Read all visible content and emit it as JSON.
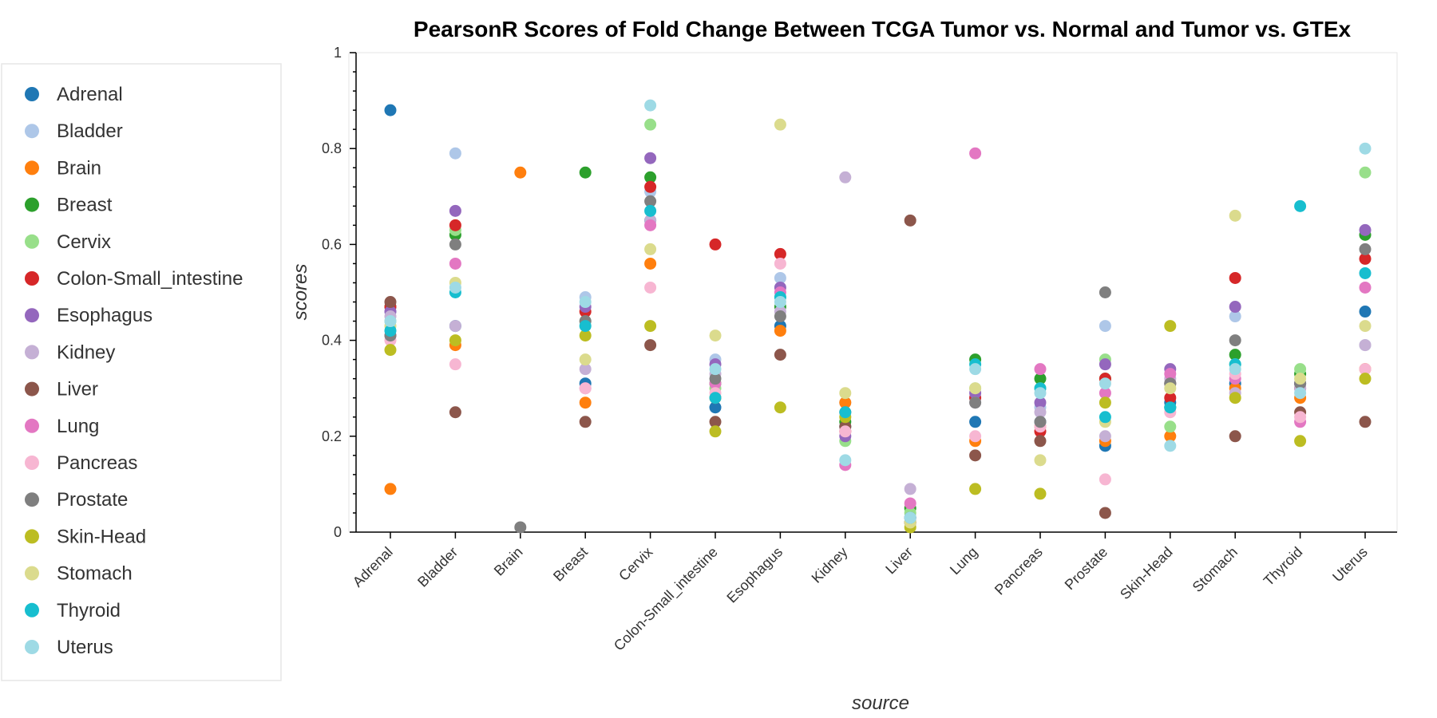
{
  "chart_data": {
    "type": "scatter",
    "title": "PearsonR Scores of Fold Change Between TCGA Tumor vs. Normal and Tumor vs. GTEx",
    "xlabel": "source",
    "ylabel": "scores",
    "ylim": [
      0,
      1
    ],
    "yticks": [
      "0",
      "0.2",
      "0.4",
      "0.6",
      "0.8",
      "1"
    ],
    "ytick_values": [
      0,
      0.2,
      0.4,
      0.6,
      0.8,
      1
    ],
    "grid": false,
    "legend_position": "left",
    "categories": [
      "Adrenal",
      "Bladder",
      "Brain",
      "Breast",
      "Cervix",
      "Colon-Small_intestine",
      "Esophagus",
      "Kidney",
      "Liver",
      "Lung",
      "Pancreas",
      "Prostate",
      "Skin-Head",
      "Stomach",
      "Thyroid",
      "Uterus"
    ],
    "series": [
      {
        "name": "Adrenal",
        "color": "#1f77b4",
        "values": [
          0.88,
          0.43,
          null,
          0.31,
          0.65,
          0.26,
          0.43,
          0.22,
          0.02,
          0.23,
          0.23,
          0.18,
          0.27,
          0.31,
          0.31,
          0.46
        ]
      },
      {
        "name": "Bladder",
        "color": "#aec7e8",
        "values": [
          0.46,
          0.79,
          null,
          0.49,
          0.71,
          0.36,
          0.53,
          0.27,
          0.02,
          0.28,
          0.26,
          0.43,
          0.31,
          0.45,
          0.3,
          0.39
        ]
      },
      {
        "name": "Brain",
        "color": "#ff7f0e",
        "values": [
          0.09,
          0.39,
          0.75,
          0.27,
          0.56,
          0.28,
          0.42,
          0.27,
          0.02,
          0.19,
          0.22,
          0.19,
          0.2,
          0.3,
          0.28,
          0.34
        ]
      },
      {
        "name": "Breast",
        "color": "#2ca02c",
        "values": [
          0.47,
          0.62,
          null,
          0.75,
          0.74,
          0.31,
          0.47,
          0.23,
          0.05,
          0.36,
          0.32,
          0.32,
          0.26,
          0.37,
          0.33,
          0.62
        ]
      },
      {
        "name": "Cervix",
        "color": "#98df8a",
        "values": [
          0.44,
          0.63,
          null,
          0.44,
          0.85,
          0.3,
          0.49,
          0.19,
          0.04,
          0.3,
          0.3,
          0.36,
          0.22,
          0.35,
          0.34,
          0.75
        ]
      },
      {
        "name": "Colon-Small_intestine",
        "color": "#d62728",
        "values": [
          0.47,
          0.64,
          null,
          0.46,
          0.72,
          0.6,
          0.58,
          0.21,
          0.03,
          0.28,
          0.21,
          0.32,
          0.28,
          0.53,
          0.3,
          0.57
        ]
      },
      {
        "name": "Esophagus",
        "color": "#9467bd",
        "values": [
          0.46,
          0.67,
          null,
          0.47,
          0.78,
          0.35,
          0.51,
          0.2,
          0.03,
          0.29,
          0.27,
          0.35,
          0.34,
          0.47,
          0.31,
          0.63
        ]
      },
      {
        "name": "Kidney",
        "color": "#c5b0d5",
        "values": [
          0.45,
          0.43,
          null,
          0.34,
          0.65,
          0.33,
          0.46,
          0.74,
          0.09,
          0.27,
          0.25,
          0.2,
          0.32,
          0.29,
          0.3,
          0.39
        ]
      },
      {
        "name": "Liver",
        "color": "#8c564b",
        "values": [
          0.48,
          0.25,
          null,
          0.23,
          0.39,
          0.23,
          0.37,
          0.22,
          0.65,
          0.16,
          0.19,
          0.04,
          0.31,
          0.2,
          0.25,
          0.23
        ]
      },
      {
        "name": "Lung",
        "color": "#e377c2",
        "values": [
          0.41,
          0.56,
          null,
          0.3,
          0.64,
          0.31,
          0.5,
          0.14,
          0.06,
          0.79,
          0.34,
          0.29,
          0.33,
          0.32,
          0.23,
          0.51
        ]
      },
      {
        "name": "Pancreas",
        "color": "#f7b6d2",
        "values": [
          0.4,
          0.35,
          null,
          0.3,
          0.51,
          0.29,
          0.56,
          0.21,
          0.03,
          0.2,
          0.22,
          0.11,
          0.25,
          0.33,
          0.24,
          0.34
        ]
      },
      {
        "name": "Prostate",
        "color": "#7f7f7f",
        "values": [
          0.41,
          0.6,
          0.01,
          0.44,
          0.69,
          0.32,
          0.45,
          0.25,
          0.02,
          0.27,
          0.23,
          0.5,
          0.31,
          0.4,
          0.31,
          0.59
        ]
      },
      {
        "name": "Skin-Head",
        "color": "#bcbd22",
        "values": [
          0.38,
          0.4,
          null,
          0.41,
          0.43,
          0.21,
          0.26,
          0.24,
          0.01,
          0.09,
          0.08,
          0.27,
          0.43,
          0.28,
          0.19,
          0.32
        ]
      },
      {
        "name": "Stomach",
        "color": "#dbdb8d",
        "values": [
          0.43,
          0.52,
          null,
          0.36,
          0.59,
          0.41,
          0.85,
          0.29,
          0.02,
          0.3,
          0.15,
          0.23,
          0.3,
          0.66,
          0.32,
          0.43
        ]
      },
      {
        "name": "Thyroid",
        "color": "#17becf",
        "values": [
          0.42,
          0.5,
          null,
          0.43,
          0.67,
          0.28,
          0.49,
          0.25,
          0.03,
          0.35,
          0.3,
          0.24,
          0.26,
          0.35,
          0.68,
          0.54
        ]
      },
      {
        "name": "Uterus",
        "color": "#9edae5",
        "values": [
          0.44,
          0.51,
          null,
          0.48,
          0.89,
          0.34,
          0.48,
          0.15,
          0.03,
          0.34,
          0.29,
          0.31,
          0.18,
          0.34,
          0.29,
          0.8
        ]
      }
    ]
  }
}
